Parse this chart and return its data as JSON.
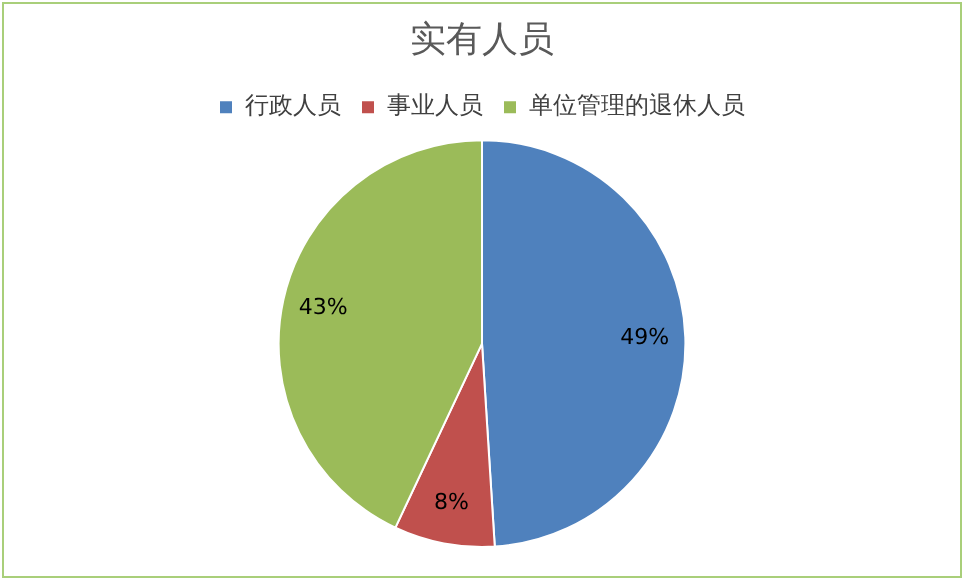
{
  "chart_data": {
    "type": "pie",
    "title": "实有人员",
    "categories": [
      "行政人员",
      "事业人员",
      "单位管理的退休人员"
    ],
    "values": [
      49,
      8,
      43
    ],
    "colors": [
      "#4f81bd",
      "#c0504d",
      "#9bbb59"
    ],
    "value_labels": [
      "49%",
      "8%",
      "43%"
    ],
    "legend": "top"
  }
}
